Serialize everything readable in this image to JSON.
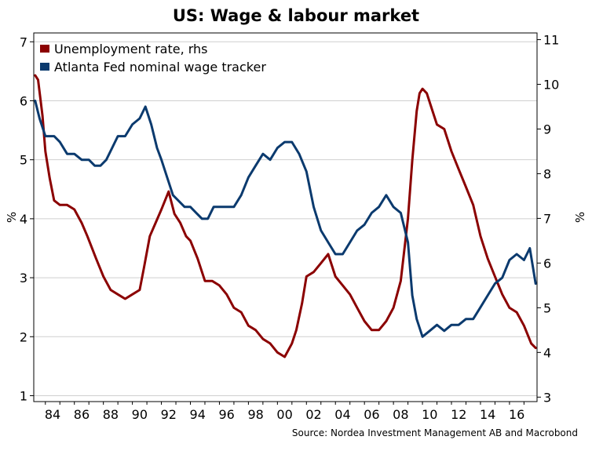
{
  "chart_data": {
    "type": "line",
    "title": "US: Wage & labour market",
    "source": "Source: Nordea Investment Management AB and Macrobond",
    "ylabel_left": "%",
    "ylabel_right": "%",
    "xlim": [
      1983.2,
      2017.9
    ],
    "ylim_left": [
      0.9,
      7.15
    ],
    "ylim_right": [
      2.9,
      11.15
    ],
    "x_ticks": [
      1984,
      1986,
      1988,
      1990,
      1992,
      1994,
      1996,
      1998,
      2000,
      2002,
      2004,
      2006,
      2008,
      2010,
      2012,
      2014,
      2016
    ],
    "x_tick_labels": [
      "84",
      "86",
      "88",
      "90",
      "92",
      "94",
      "96",
      "98",
      "00",
      "02",
      "04",
      "06",
      "08",
      "10",
      "12",
      "14",
      "16"
    ],
    "y_left_ticks": [
      1,
      2,
      3,
      4,
      5,
      6,
      7
    ],
    "y_right_ticks": [
      3,
      4,
      5,
      6,
      7,
      8,
      9,
      10,
      11
    ],
    "grid": "horizontal",
    "legend_position": "top-left",
    "series": [
      {
        "name": "Unemployment rate, rhs",
        "axis": "right",
        "color": "#8B0000",
        "x": [
          1983.3,
          1983.5,
          1983.8,
          1984.0,
          1984.3,
          1984.6,
          1985.0,
          1985.5,
          1986.0,
          1986.5,
          1986.9,
          1987.5,
          1988.0,
          1988.5,
          1989.0,
          1989.5,
          1990.0,
          1990.5,
          1990.8,
          1991.2,
          1991.6,
          1992.0,
          1992.5,
          1992.9,
          1993.3,
          1993.7,
          1994.0,
          1994.5,
          1995.0,
          1995.5,
          1996.0,
          1996.5,
          1997.0,
          1997.5,
          1998.0,
          1998.5,
          1999.0,
          1999.5,
          2000.0,
          2000.5,
          2001.0,
          2001.3,
          2001.7,
          2002.0,
          2002.5,
          2003.0,
          2003.5,
          2004.0,
          2004.5,
          2005.0,
          2005.5,
          2006.0,
          2006.5,
          2007.0,
          2007.5,
          2008.0,
          2008.5,
          2009.0,
          2009.3,
          2009.6,
          2009.8,
          2010.0,
          2010.3,
          2010.6,
          2011.0,
          2011.5,
          2012.0,
          2012.5,
          2013.0,
          2013.5,
          2014.0,
          2014.5,
          2015.0,
          2015.5,
          2016.0,
          2016.5,
          2017.0,
          2017.5,
          2017.8
        ],
        "values": [
          10.2,
          10.1,
          9.3,
          8.5,
          7.9,
          7.4,
          7.3,
          7.3,
          7.2,
          6.9,
          6.6,
          6.1,
          5.7,
          5.4,
          5.3,
          5.2,
          5.3,
          5.4,
          5.9,
          6.6,
          6.9,
          7.2,
          7.6,
          7.1,
          6.9,
          6.6,
          6.5,
          6.1,
          5.6,
          5.6,
          5.5,
          5.3,
          5.0,
          4.9,
          4.6,
          4.5,
          4.3,
          4.2,
          4.0,
          3.9,
          4.2,
          4.5,
          5.1,
          5.7,
          5.8,
          6.0,
          6.2,
          5.7,
          5.5,
          5.3,
          5.0,
          4.7,
          4.5,
          4.5,
          4.7,
          5.0,
          5.6,
          7.0,
          8.3,
          9.4,
          9.8,
          9.9,
          9.8,
          9.5,
          9.1,
          9.0,
          8.5,
          8.1,
          7.7,
          7.3,
          6.6,
          6.1,
          5.7,
          5.3,
          5.0,
          4.9,
          4.6,
          4.2,
          4.1
        ]
      },
      {
        "name": "Atlanta Fed nominal wage tracker",
        "axis": "left",
        "color": "#0B3A6E",
        "x": [
          1983.3,
          1983.6,
          1984.0,
          1984.3,
          1984.6,
          1985.0,
          1985.5,
          1986.0,
          1986.5,
          1987.0,
          1987.4,
          1987.8,
          1988.2,
          1988.6,
          1989.0,
          1989.5,
          1990.0,
          1990.5,
          1990.9,
          1991.3,
          1991.7,
          1992.0,
          1992.4,
          1992.8,
          1993.2,
          1993.6,
          1994.0,
          1994.4,
          1994.8,
          1995.2,
          1995.6,
          1996.0,
          1996.5,
          1997.0,
          1997.5,
          1998.0,
          1998.5,
          1999.0,
          1999.5,
          2000.0,
          2000.5,
          2001.0,
          2001.5,
          2002.0,
          2002.5,
          2003.0,
          2003.5,
          2004.0,
          2004.5,
          2005.0,
          2005.5,
          2006.0,
          2006.5,
          2007.0,
          2007.5,
          2008.0,
          2008.5,
          2009.0,
          2009.3,
          2009.6,
          2010.0,
          2010.5,
          2011.0,
          2011.5,
          2012.0,
          2012.5,
          2013.0,
          2013.5,
          2014.0,
          2014.5,
          2015.0,
          2015.5,
          2016.0,
          2016.5,
          2017.0,
          2017.4,
          2017.8
        ],
        "values": [
          6.0,
          5.7,
          5.4,
          5.4,
          5.4,
          5.3,
          5.1,
          5.1,
          5.0,
          5.0,
          4.9,
          4.9,
          5.0,
          5.2,
          5.4,
          5.4,
          5.6,
          5.7,
          5.9,
          5.6,
          5.2,
          5.0,
          4.7,
          4.4,
          4.3,
          4.2,
          4.2,
          4.1,
          4.0,
          4.0,
          4.2,
          4.2,
          4.2,
          4.2,
          4.4,
          4.7,
          4.9,
          5.1,
          5.0,
          5.2,
          5.3,
          5.3,
          5.1,
          4.8,
          4.2,
          3.8,
          3.6,
          3.4,
          3.4,
          3.6,
          3.8,
          3.9,
          4.1,
          4.2,
          4.4,
          4.2,
          4.1,
          3.6,
          2.7,
          2.3,
          2.0,
          2.1,
          2.2,
          2.1,
          2.2,
          2.2,
          2.3,
          2.3,
          2.5,
          2.7,
          2.9,
          3.0,
          3.3,
          3.4,
          3.3,
          3.5,
          2.9
        ]
      }
    ]
  }
}
